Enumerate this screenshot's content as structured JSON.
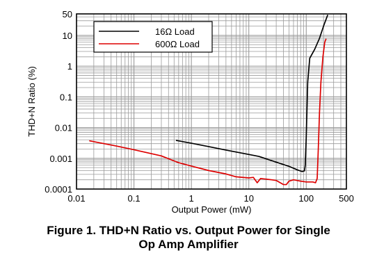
{
  "chart_data": {
    "type": "line",
    "xlabel": "Output Power (mW)",
    "ylabel": "THD+N Ratio (%)",
    "xscale": "log",
    "yscale": "log",
    "xlim": [
      0.01,
      500
    ],
    "ylim": [
      0.0001,
      50
    ],
    "grid": true,
    "legend_position": "top-left",
    "x_tick_labels": [
      {
        "value": 0.01,
        "label": "0.01"
      },
      {
        "value": 0.1,
        "label": "0.1"
      },
      {
        "value": 1,
        "label": "1"
      },
      {
        "value": 10,
        "label": "10"
      },
      {
        "value": 100,
        "label": "100"
      },
      {
        "value": 500,
        "label": "500"
      }
    ],
    "y_tick_labels": [
      {
        "value": 50,
        "label": "50"
      },
      {
        "value": 10,
        "label": "10"
      },
      {
        "value": 1,
        "label": "1"
      },
      {
        "value": 0.1,
        "label": "0.1"
      },
      {
        "value": 0.01,
        "label": "0.01"
      },
      {
        "value": 0.001,
        "label": "0.001"
      },
      {
        "value": 0.0001,
        "label": "0.0001"
      }
    ],
    "series": [
      {
        "name": "16Ω Load",
        "color": "#000000",
        "points": [
          [
            0.55,
            0.0038
          ],
          [
            1,
            0.0031
          ],
          [
            2,
            0.0024
          ],
          [
            4,
            0.00185
          ],
          [
            8,
            0.00145
          ],
          [
            15,
            0.00115
          ],
          [
            30,
            0.00075
          ],
          [
            50,
            0.00055
          ],
          [
            70,
            0.00042
          ],
          [
            85,
            0.00037
          ],
          [
            93,
            0.00039
          ],
          [
            96,
            0.0006
          ],
          [
            100,
            0.005
          ],
          [
            106,
            0.3
          ],
          [
            115,
            1.8
          ],
          [
            140,
            3.5
          ],
          [
            170,
            8
          ],
          [
            200,
            20
          ],
          [
            235,
            45
          ]
        ]
      },
      {
        "name": "600Ω Load",
        "color": "#dd0000",
        "points": [
          [
            0.017,
            0.0037
          ],
          [
            0.05,
            0.0025
          ],
          [
            0.1,
            0.0019
          ],
          [
            0.3,
            0.0012
          ],
          [
            0.6,
            0.00072
          ],
          [
            1,
            0.00056
          ],
          [
            2,
            0.0004
          ],
          [
            4,
            0.00031
          ],
          [
            6,
            0.00025
          ],
          [
            10,
            0.00023
          ],
          [
            12,
            0.00024
          ],
          [
            14,
            0.00016
          ],
          [
            16,
            0.00022
          ],
          [
            20,
            0.00021
          ],
          [
            25,
            0.0002
          ],
          [
            30,
            0.00019
          ],
          [
            40,
            0.00014
          ],
          [
            45,
            0.00014
          ],
          [
            50,
            0.00018
          ],
          [
            60,
            0.0002
          ],
          [
            80,
            0.00018
          ],
          [
            100,
            0.00017
          ],
          [
            130,
            0.00017
          ],
          [
            145,
            0.00016
          ],
          [
            155,
            0.00022
          ],
          [
            162,
            0.002
          ],
          [
            170,
            0.03
          ],
          [
            180,
            0.3
          ],
          [
            195,
            2
          ],
          [
            210,
            6
          ],
          [
            220,
            7.5
          ]
        ]
      }
    ]
  },
  "caption": {
    "line1": "Figure 1. THD+N Ratio vs. Output Power for Single",
    "line2": "Op Amp Amplifier"
  }
}
